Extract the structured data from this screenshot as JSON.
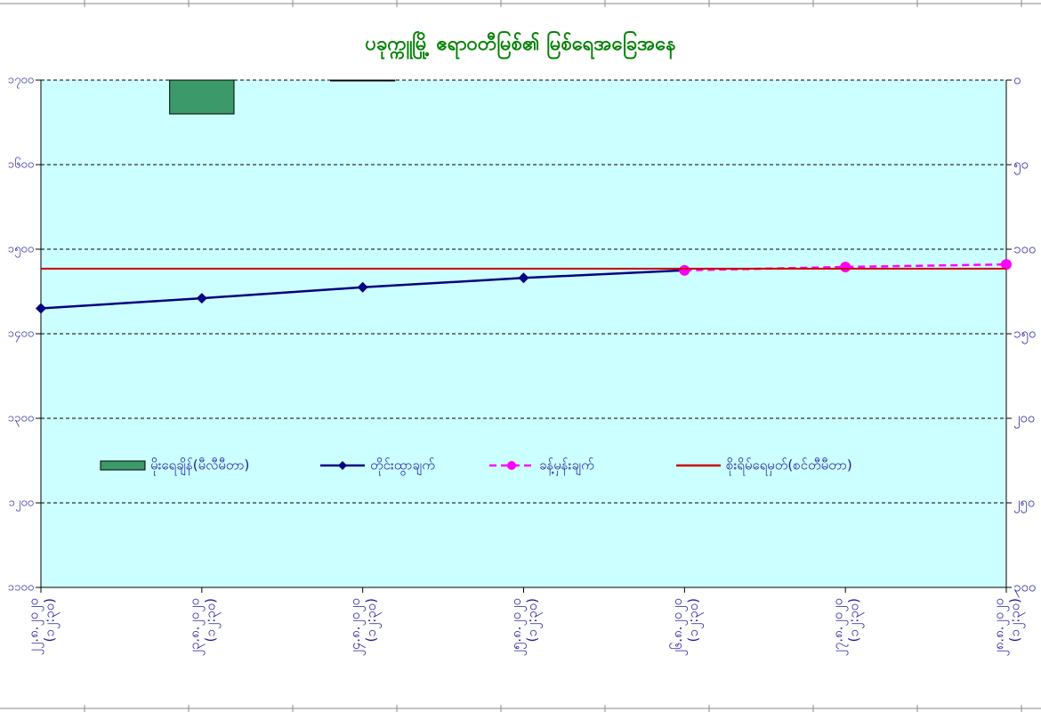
{
  "chart_data": {
    "type": "combo",
    "title": "ပခုက္ကူမြို့ ဧရာဝတီမြစ်၏ မြစ်ရေအခြေအနေ",
    "categories": [
      [
        "၂၂.၈.၂၀၂၀",
        "(၁၂:၃၀)"
      ],
      [
        "၂၃.၈.၂၀၂၀",
        "(၁၂:၃၀)"
      ],
      [
        "၂၄.၈.၂၀၂၀",
        "(၁၂:၃၀)"
      ],
      [
        "၂၅.၈.၂၀၂၀",
        "(၁၂:၃၀)"
      ],
      [
        "၂၆.၈.၂၀၂၀",
        "(၁၂:၃၀)"
      ],
      [
        "၂၇.၈.၂၀၂၀",
        "(၁၂:၃၀)"
      ],
      [
        "၂၈.၈.၂၀၂၀",
        "(၁၂:၃၀)"
      ]
    ],
    "ylim": [
      1100,
      1700
    ],
    "yticks": [
      {
        "value": 1100,
        "label": "၁၁၀၀"
      },
      {
        "value": 1200,
        "label": "၁၂၀၀"
      },
      {
        "value": 1300,
        "label": "၁၃၀၀"
      },
      {
        "value": 1400,
        "label": "၁၄၀၀"
      },
      {
        "value": 1500,
        "label": "၁၅၀၀"
      },
      {
        "value": 1600,
        "label": "၁၆၀၀"
      },
      {
        "value": 1700,
        "label": "၁၇၀၀"
      }
    ],
    "y2lim": [
      0,
      300
    ],
    "y2_inverted": true,
    "y2ticks": [
      {
        "value": 0,
        "label": "၀"
      },
      {
        "value": 50,
        "label": "၅၀"
      },
      {
        "value": 100,
        "label": "၁၀၀"
      },
      {
        "value": 150,
        "label": "၁၅၀"
      },
      {
        "value": 200,
        "label": "၂၀၀"
      },
      {
        "value": 250,
        "label": "၂၅၀"
      },
      {
        "value": 300,
        "label": "၃၀၀"
      }
    ],
    "grid": true,
    "background": "#ccffff",
    "legend_position": "center",
    "series": [
      {
        "name": "မိုးရေချိန်(မီလီမီတာ)",
        "type": "bar",
        "axis": "y2",
        "color": "#3c9a6a",
        "values": [
          0,
          20,
          0.5,
          0,
          0,
          0,
          0
        ]
      },
      {
        "name": "တိုင်းထွာချက်",
        "type": "line",
        "marker": "diamond",
        "color": "#000080",
        "values": [
          1430,
          1442,
          1455,
          1466,
          1475,
          null,
          null
        ]
      },
      {
        "name": "ခန့်မှန်းချက်",
        "type": "line",
        "marker": "circle",
        "dashed": true,
        "color": "#ff00ff",
        "values": [
          null,
          null,
          null,
          null,
          1475,
          1479,
          1482
        ]
      },
      {
        "name": "စိုးရိမ်ရေမှတ်(စင်တီမီတာ)",
        "type": "hline",
        "color": "#cc0000",
        "value": 1477
      }
    ]
  }
}
